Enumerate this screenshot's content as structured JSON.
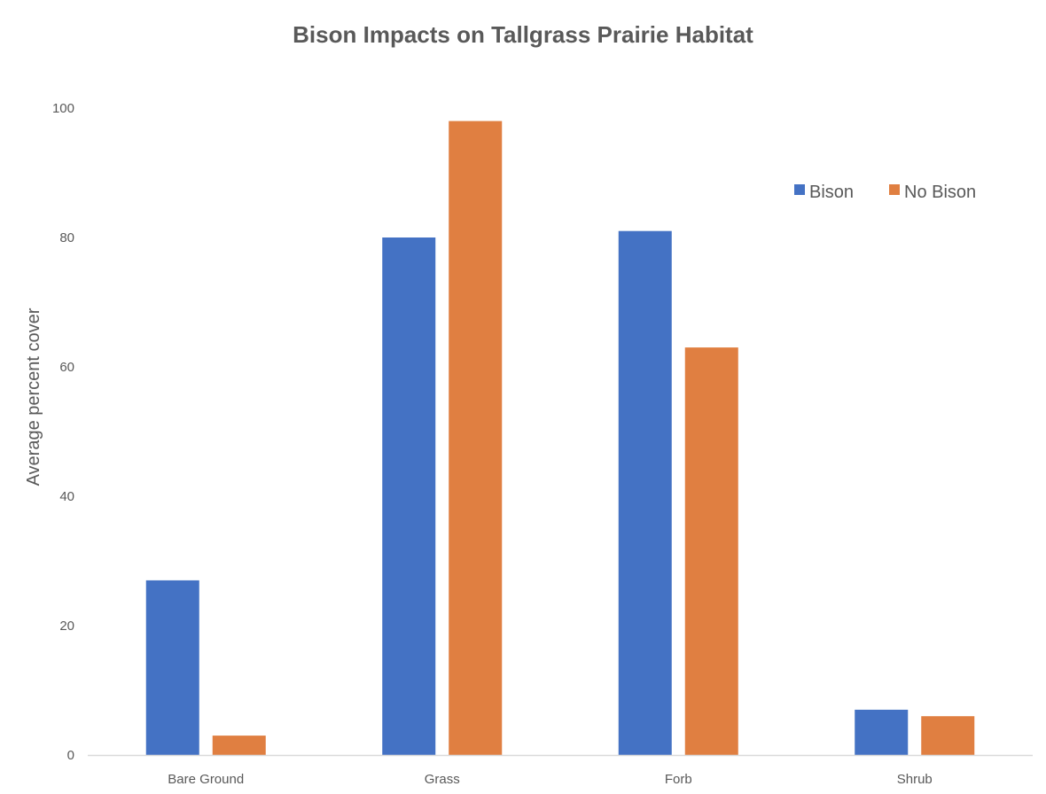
{
  "chart_data": {
    "type": "bar",
    "title": "Bison Impacts on Tallgrass Prairie Habitat",
    "xlabel": "",
    "ylabel": "Average percent cover",
    "ylim": [
      0,
      100
    ],
    "yticks": [
      0,
      20,
      40,
      60,
      80,
      100
    ],
    "grid": false,
    "legend_position": "top-right",
    "categories": [
      "Bare Ground",
      "Grass",
      "Forb",
      "Shrub"
    ],
    "series": [
      {
        "name": "Bison",
        "color": "#4472C4",
        "values": [
          27,
          80,
          81,
          7
        ]
      },
      {
        "name": "No Bison",
        "color": "#E07F41",
        "values": [
          3,
          98,
          63,
          6
        ]
      }
    ]
  }
}
